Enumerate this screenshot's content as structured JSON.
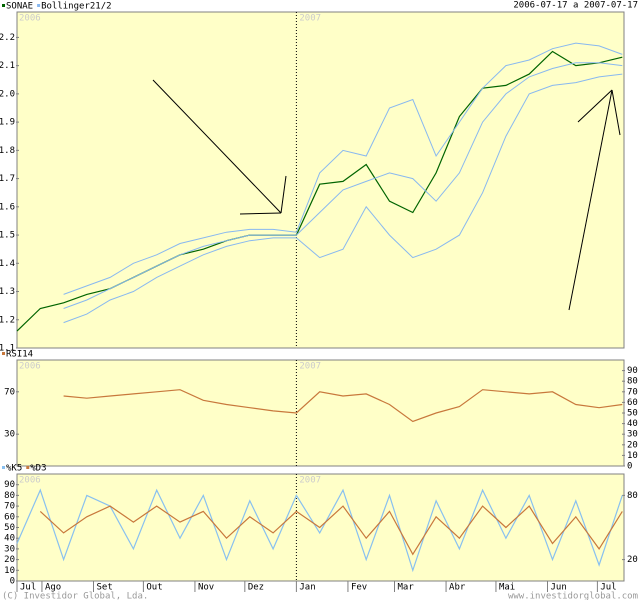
{
  "header": {
    "date_range": "2006-07-17 a 2007-07-17"
  },
  "year_labels": [
    "2006",
    "2007"
  ],
  "footer": {
    "copyright": "(C) Investidor Global, Lda.",
    "website": "www.investidorglobal.com"
  },
  "chart_data": [
    {
      "type": "line",
      "x": [
        "2006-07-17",
        "2006-07-31",
        "2006-08-14",
        "2006-08-28",
        "2006-09-11",
        "2006-09-25",
        "2006-10-09",
        "2006-10-23",
        "2006-11-06",
        "2006-11-20",
        "2006-12-04",
        "2006-12-18",
        "2007-01-01",
        "2007-01-15",
        "2007-01-29",
        "2007-02-12",
        "2007-02-26",
        "2007-03-12",
        "2007-03-26",
        "2007-04-09",
        "2007-04-23",
        "2007-05-07",
        "2007-05-21",
        "2007-06-04",
        "2007-06-18",
        "2007-07-02",
        "2007-07-16"
      ],
      "xlim": [
        "2006-07-17",
        "2007-07-17"
      ],
      "ylim": [
        1.1,
        2.29
      ],
      "yticks": [
        1.1,
        1.2,
        1.3,
        1.4,
        1.5,
        1.6,
        1.7,
        1.8,
        1.9,
        {
          "value": 2,
          "label": "2.0"
        },
        2.1,
        2.2
      ],
      "series": [
        {
          "name": "SONAE",
          "color": "#006400",
          "values": [
            1.16,
            1.24,
            1.26,
            1.29,
            1.31,
            1.35,
            1.39,
            1.43,
            1.45,
            1.48,
            1.5,
            1.5,
            1.5,
            1.68,
            1.69,
            1.75,
            1.62,
            1.58,
            1.72,
            1.92,
            2.02,
            2.03,
            2.07,
            2.15,
            2.1,
            2.11,
            2.13
          ]
        },
        {
          "name": "Bollinger21/2",
          "color": "#88b8f0",
          "upper": [
            null,
            null,
            1.29,
            1.32,
            1.35,
            1.4,
            1.43,
            1.47,
            1.49,
            1.51,
            1.52,
            1.52,
            1.51,
            1.72,
            1.8,
            1.78,
            1.95,
            1.98,
            1.78,
            1.9,
            2.02,
            2.1,
            2.12,
            2.16,
            2.18,
            2.17,
            2.14
          ],
          "middle": [
            null,
            null,
            1.24,
            1.27,
            1.31,
            1.35,
            1.39,
            1.43,
            1.46,
            1.48,
            1.5,
            1.5,
            1.5,
            1.58,
            1.66,
            1.69,
            1.72,
            1.7,
            1.62,
            1.72,
            1.9,
            2.0,
            2.06,
            2.09,
            2.11,
            2.11,
            2.1
          ],
          "lower": [
            null,
            null,
            1.19,
            1.22,
            1.27,
            1.3,
            1.35,
            1.39,
            1.43,
            1.46,
            1.48,
            1.49,
            1.49,
            1.42,
            1.45,
            1.6,
            1.5,
            1.42,
            1.45,
            1.5,
            1.65,
            1.85,
            2.0,
            2.03,
            2.04,
            2.06,
            2.07
          ]
        }
      ]
    },
    {
      "type": "line",
      "ylim": [
        0,
        100
      ],
      "yticks": [
        30,
        70
      ],
      "y2lim": [
        0,
        100
      ],
      "y2ticks": [
        0,
        10,
        20,
        30,
        40,
        50,
        60,
        70,
        80,
        90
      ],
      "series": [
        {
          "name": "RSI14",
          "color": "#c8783c",
          "values": [
            null,
            null,
            66,
            64,
            66,
            68,
            70,
            72,
            62,
            58,
            55,
            52,
            50,
            70,
            66,
            68,
            58,
            42,
            50,
            56,
            72,
            70,
            68,
            70,
            58,
            55,
            58
          ]
        }
      ]
    },
    {
      "type": "line",
      "ylim": [
        0,
        100
      ],
      "yticks": [
        0,
        10,
        20,
        30,
        40,
        50,
        60,
        70,
        80,
        90
      ],
      "y2lim": [
        0,
        100
      ],
      "y2ticks": [
        20,
        80
      ],
      "xticks": [
        {
          "value": "2006-07-17",
          "label": "Jul"
        },
        {
          "value": "2006-08-01",
          "label": "Ago"
        },
        {
          "value": "2006-09-01",
          "label": "Set"
        },
        {
          "value": "2006-10-01",
          "label": "Out"
        },
        {
          "value": "2006-11-01",
          "label": "Nov"
        },
        {
          "value": "2006-12-01",
          "label": "Dez"
        },
        {
          "value": "2007-01-01",
          "label": "Jan"
        },
        {
          "value": "2007-02-01",
          "label": "Fev"
        },
        {
          "value": "2007-03-01",
          "label": "Mar"
        },
        {
          "value": "2007-04-01",
          "label": "Abr"
        },
        {
          "value": "2007-05-01",
          "label": "Mai"
        },
        {
          "value": "2007-06-01",
          "label": "Jun"
        },
        {
          "value": "2007-07-01",
          "label": "Jul"
        }
      ],
      "series": [
        {
          "name": "%K5",
          "color": "#88c0f0",
          "values": [
            35,
            85,
            20,
            80,
            70,
            30,
            85,
            40,
            80,
            20,
            75,
            30,
            80,
            45,
            85,
            20,
            80,
            10,
            75,
            30,
            85,
            40,
            80,
            20,
            75,
            15,
            80
          ]
        },
        {
          "name": "%D3",
          "color": "#c8783c",
          "values": [
            null,
            65,
            45,
            60,
            70,
            55,
            70,
            55,
            65,
            40,
            60,
            45,
            65,
            50,
            70,
            40,
            65,
            25,
            60,
            40,
            70,
            50,
            70,
            35,
            60,
            30,
            65
          ]
        }
      ]
    }
  ]
}
